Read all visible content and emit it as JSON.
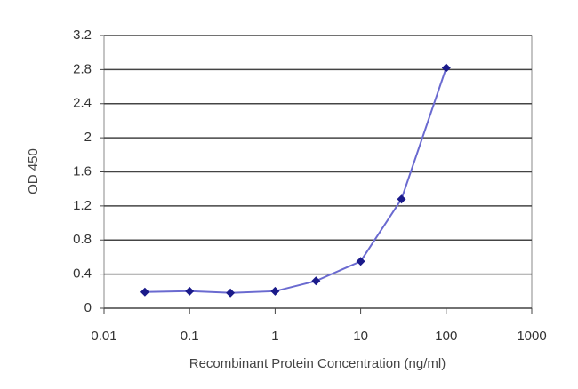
{
  "chart_data": {
    "type": "line",
    "x_label": "Recombinant Protein Concentration (ng/ml)",
    "y_label": "OD 450",
    "x": [
      0.03,
      0.1,
      0.3,
      1,
      3,
      10,
      30,
      100
    ],
    "values": [
      0.19,
      0.2,
      0.18,
      0.2,
      0.32,
      0.55,
      1.28,
      2.82
    ],
    "color": "#6a6ad0",
    "marker_color": "#1a1a8a",
    "log_x": true,
    "grid": true,
    "xlim": [
      0.01,
      1000
    ],
    "xticks": [
      0.01,
      0.1,
      1,
      10,
      100,
      1000
    ],
    "ylim": [
      0,
      3.2
    ],
    "yticks": [
      0,
      0.4,
      0.8,
      1.2,
      1.6,
      2,
      2.4,
      2.8,
      3.2
    ]
  }
}
